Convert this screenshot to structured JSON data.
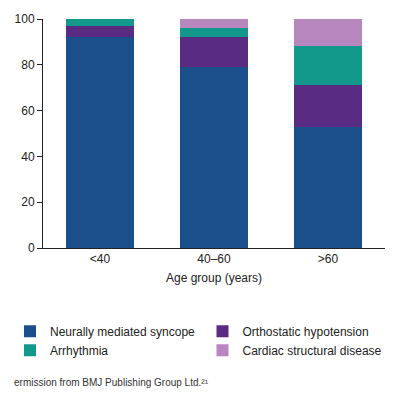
{
  "chart_data": {
    "type": "bar",
    "stacked": true,
    "x_label": "Age group (years)",
    "categories": [
      "<40",
      "40–60",
      ">60"
    ],
    "series": [
      {
        "name": "Neurally mediated syncope",
        "color": "#1b4f8c",
        "values": [
          92,
          79,
          53
        ]
      },
      {
        "name": "Orthostatic hypotension",
        "color": "#5a2b82",
        "values": [
          5,
          13,
          18
        ]
      },
      {
        "name": "Arrhythmia",
        "color": "#13998b",
        "values": [
          3,
          4,
          17
        ]
      },
      {
        "name": "Cardiac structural disease",
        "color": "#b987c0",
        "values": [
          0,
          4,
          12
        ]
      }
    ],
    "ylim": [
      0,
      100
    ],
    "yticks": [
      0,
      20,
      40,
      60,
      80,
      100
    ],
    "grid": false,
    "legend": "bottom",
    "annotations": [
      "ermission from BMJ Publishing Group Ltd.²¹"
    ]
  }
}
